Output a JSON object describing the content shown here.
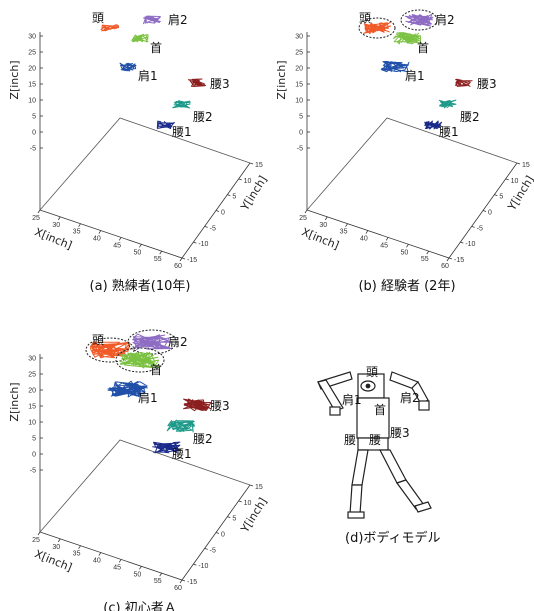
{
  "chart_data": [
    {
      "type": "scatter",
      "caption": "(a) 熟練者(10年)",
      "xlabel": "X[inch]",
      "ylabel": "Y[inch]",
      "zlabel": "Z[inch]",
      "xlim": [
        25,
        60
      ],
      "ylim": [
        -15,
        15
      ],
      "zlim": [
        -5,
        30
      ],
      "x_ticks": [
        "25",
        "30",
        "35",
        "40",
        "45",
        "50",
        "55",
        "60"
      ],
      "y_ticks": [
        "-15",
        "-10",
        "-5",
        "0",
        "5",
        "10",
        "15"
      ],
      "z_ticks": [
        "-5",
        "0",
        "5",
        "10",
        "15",
        "20",
        "25",
        "30"
      ],
      "clusters": [
        {
          "name": "頭",
          "color": "#f05a28",
          "z": 29,
          "spread": "small",
          "circled": false
        },
        {
          "name": "肩2",
          "color": "#8e6cc4",
          "z": 31,
          "spread": "small",
          "circled": false
        },
        {
          "name": "首",
          "color": "#7cc242",
          "z": 25,
          "spread": "small",
          "circled": false
        },
        {
          "name": "肩1",
          "color": "#1f4fa8",
          "z": 18,
          "spread": "small",
          "circled": false
        },
        {
          "name": "腰3",
          "color": "#8b1f1f",
          "z": 14,
          "spread": "small",
          "circled": false
        },
        {
          "name": "腰2",
          "color": "#1e9a8a",
          "z": 7,
          "spread": "small",
          "circled": false
        },
        {
          "name": "腰1",
          "color": "#1a2a8a",
          "z": 1,
          "spread": "small",
          "circled": false
        }
      ]
    },
    {
      "type": "scatter",
      "caption": "(b) 経験者 (2年)",
      "xlabel": "X[inch]",
      "ylabel": "Y[inch]",
      "zlabel": "Z[inch]",
      "xlim": [
        25,
        60
      ],
      "ylim": [
        -15,
        15
      ],
      "zlim": [
        -5,
        30
      ],
      "x_ticks": [
        "25",
        "30",
        "35",
        "40",
        "45",
        "50",
        "55",
        "60"
      ],
      "y_ticks": [
        "-15",
        "-10",
        "-5",
        "0",
        "5",
        "10",
        "15"
      ],
      "z_ticks": [
        "-5",
        "0",
        "5",
        "10",
        "15",
        "20",
        "25",
        "30"
      ],
      "clusters": [
        {
          "name": "頭",
          "color": "#f05a28",
          "z": 28,
          "spread": "medium",
          "circled": true
        },
        {
          "name": "肩2",
          "color": "#8e6cc4",
          "z": 29,
          "spread": "medium",
          "circled": true
        },
        {
          "name": "首",
          "color": "#7cc242",
          "z": 23,
          "spread": "medium",
          "circled": false
        },
        {
          "name": "肩1",
          "color": "#1f4fa8",
          "z": 17,
          "spread": "medium",
          "circled": false
        },
        {
          "name": "腰3",
          "color": "#8b1f1f",
          "z": 12,
          "spread": "small",
          "circled": false
        },
        {
          "name": "腰2",
          "color": "#1e9a8a",
          "z": 6,
          "spread": "small",
          "circled": false
        },
        {
          "name": "腰1",
          "color": "#1a2a8a",
          "z": 0,
          "spread": "small",
          "circled": false
        }
      ]
    },
    {
      "type": "scatter",
      "caption": "(c) 初心者Ａ",
      "xlabel": "X[inch]",
      "ylabel": "Y[inch]",
      "zlabel": "Z[inch]",
      "xlim": [
        25,
        60
      ],
      "ylim": [
        -15,
        15
      ],
      "zlim": [
        -5,
        30
      ],
      "x_ticks": [
        "25",
        "30",
        "35",
        "40",
        "45",
        "50",
        "55",
        "60"
      ],
      "y_ticks": [
        "-15",
        "-10",
        "-5",
        "0",
        "5",
        "10",
        "15"
      ],
      "z_ticks": [
        "-5",
        "0",
        "5",
        "10",
        "15",
        "20",
        "25",
        "30"
      ],
      "clusters": [
        {
          "name": "頭",
          "color": "#f05a28",
          "z": 28,
          "spread": "large",
          "circled": true
        },
        {
          "name": "肩2",
          "color": "#8e6cc4",
          "z": 29,
          "spread": "large",
          "circled": true
        },
        {
          "name": "首",
          "color": "#7cc242",
          "z": 24,
          "spread": "large",
          "circled": true
        },
        {
          "name": "肩1",
          "color": "#1f4fa8",
          "z": 17,
          "spread": "large",
          "circled": false
        },
        {
          "name": "腰3",
          "color": "#8b1f1f",
          "z": 14,
          "spread": "medium",
          "circled": false
        },
        {
          "name": "腰2",
          "color": "#1e9a8a",
          "z": 9,
          "spread": "medium",
          "circled": false
        },
        {
          "name": "腰1",
          "color": "#1a2a8a",
          "z": 3,
          "spread": "medium",
          "circled": false
        }
      ]
    }
  ],
  "body_model": {
    "caption": "(d)ボディモデル",
    "labels": [
      "頭",
      "肩1",
      "首",
      "肩2",
      "腰",
      "腰",
      "腰3"
    ]
  }
}
